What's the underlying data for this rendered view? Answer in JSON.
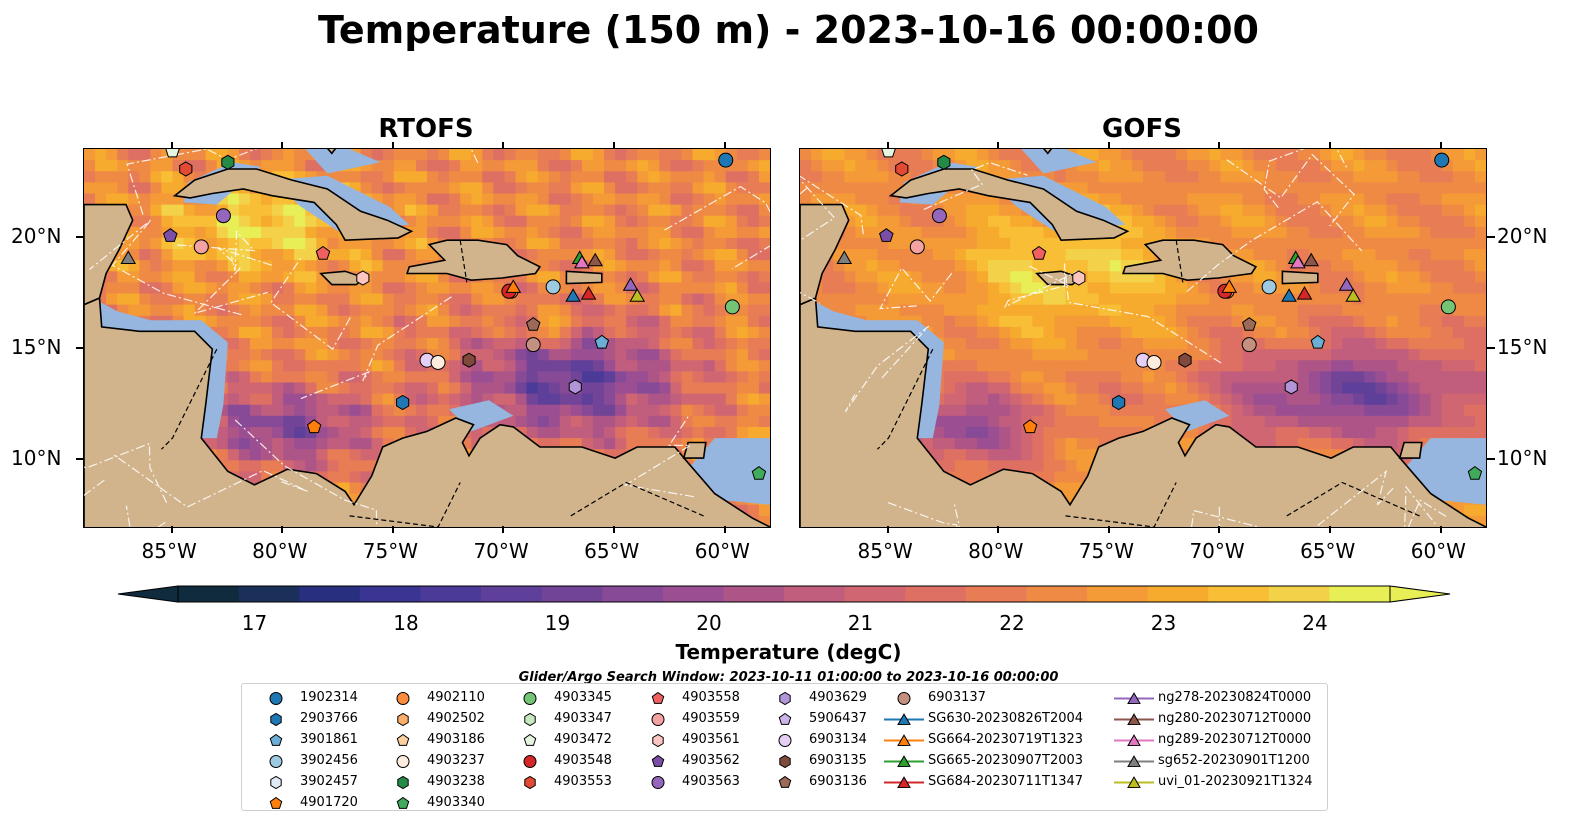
{
  "figure": {
    "title": "Temperature (150 m) - 2023-10-16 00:00:00",
    "search_window": "Glider/Argo Search Window: 2023-10-11 01:00:00 to 2023-10-16 00:00:00"
  },
  "chart_data": {
    "type": "heatmap",
    "variable": "Temperature (degC)",
    "depth": "150 m",
    "panels": [
      {
        "title": "RTOFS"
      },
      {
        "title": "GOFS"
      }
    ],
    "x_axis": {
      "ticks": [
        -85,
        -80,
        -75,
        -70,
        -65,
        -60
      ],
      "tick_labels": [
        "85°W",
        "80°W",
        "75°W",
        "70°W",
        "65°W",
        "60°W"
      ],
      "range": [
        -89,
        -58
      ]
    },
    "y_axis": {
      "ticks": [
        10,
        15,
        20
      ],
      "tick_labels": [
        "10°N",
        "15°N",
        "20°N"
      ],
      "range": [
        7,
        24
      ]
    },
    "colorbar": {
      "label": "Temperature (degC)",
      "ticks": [
        17,
        18,
        19,
        20,
        21,
        22,
        23,
        24
      ],
      "range": [
        16.5,
        24.5
      ],
      "extend": "both",
      "colors": [
        "#0f2b3d",
        "#1a2f5a",
        "#272f7e",
        "#3a3592",
        "#4b3a98",
        "#5e3f99",
        "#714498",
        "#864a97",
        "#9b4f92",
        "#ae5588",
        "#c15d7d",
        "#d06671",
        "#dd7063",
        "#e87c55",
        "#ef8a45",
        "#f49a37",
        "#f7ab2e",
        "#f8be36",
        "#f3d24a",
        "#e8ee55"
      ]
    },
    "grid": false
  },
  "legend": {
    "columns": [
      [
        {
          "label": "1902314",
          "marker": "circle",
          "color": "#1f77b4",
          "kind": "argo"
        },
        {
          "label": "2903766",
          "marker": "hexagon",
          "color": "#1f77b4",
          "kind": "argo"
        },
        {
          "label": "3901861",
          "marker": "pentagon",
          "color": "#6baed6",
          "kind": "argo"
        },
        {
          "label": "3902456",
          "marker": "circle",
          "color": "#9ecae1",
          "kind": "argo"
        },
        {
          "label": "3902457",
          "marker": "hexagon",
          "color": "#deebf7",
          "kind": "argo"
        },
        {
          "label": "4901720",
          "marker": "pentagon",
          "color": "#ff7f0e",
          "kind": "argo"
        }
      ],
      [
        {
          "label": "4902110",
          "marker": "circle",
          "color": "#fd8d3c",
          "kind": "argo"
        },
        {
          "label": "4902502",
          "marker": "hexagon",
          "color": "#fdae6b",
          "kind": "argo"
        },
        {
          "label": "4903186",
          "marker": "pentagon",
          "color": "#fdd0a2",
          "kind": "argo"
        },
        {
          "label": "4903237",
          "marker": "circle",
          "color": "#feedde",
          "kind": "argo"
        },
        {
          "label": "4903238",
          "marker": "hexagon",
          "color": "#238b45",
          "kind": "argo"
        },
        {
          "label": "4903340",
          "marker": "pentagon",
          "color": "#41ab5d",
          "kind": "argo"
        }
      ],
      [
        {
          "label": "4903345",
          "marker": "circle",
          "color": "#74c476",
          "kind": "argo"
        },
        {
          "label": "4903347",
          "marker": "hexagon",
          "color": "#c7e9c0",
          "kind": "argo"
        },
        {
          "label": "4903472",
          "marker": "pentagon",
          "color": "#e5f5e0",
          "kind": "argo"
        },
        {
          "label": "4903548",
          "marker": "circle",
          "color": "#d62728",
          "kind": "argo"
        },
        {
          "label": "4903553",
          "marker": "hexagon",
          "color": "#e34a33",
          "kind": "argo"
        }
      ],
      [
        {
          "label": "4903558",
          "marker": "pentagon",
          "color": "#f06060",
          "kind": "argo"
        },
        {
          "label": "4903559",
          "marker": "circle",
          "color": "#f4a3a3",
          "kind": "argo"
        },
        {
          "label": "4903561",
          "marker": "hexagon",
          "color": "#fcc5c0",
          "kind": "argo"
        },
        {
          "label": "4903562",
          "marker": "pentagon",
          "color": "#7b4fa8",
          "kind": "argo"
        },
        {
          "label": "4903563",
          "marker": "circle",
          "color": "#9467bd",
          "kind": "argo"
        }
      ],
      [
        {
          "label": "4903629",
          "marker": "hexagon",
          "color": "#b294d8",
          "kind": "argo"
        },
        {
          "label": "5906437",
          "marker": "pentagon",
          "color": "#cbb5e8",
          "kind": "argo"
        },
        {
          "label": "6903134",
          "marker": "circle",
          "color": "#e6cff5",
          "kind": "argo"
        },
        {
          "label": "6903135",
          "marker": "hexagon",
          "color": "#7f4a3b",
          "kind": "argo"
        },
        {
          "label": "6903136",
          "marker": "pentagon",
          "color": "#9b6a58",
          "kind": "argo"
        }
      ],
      [
        {
          "label": "6903137",
          "marker": "circle",
          "color": "#c4907f",
          "kind": "argo"
        },
        {
          "label": "SG630-20230826T2004",
          "marker": "triangle",
          "color": "#1f77b4",
          "kind": "glider"
        },
        {
          "label": "SG664-20230719T1323",
          "marker": "triangle",
          "color": "#ff7f0e",
          "kind": "glider"
        },
        {
          "label": "SG665-20230907T2003",
          "marker": "triangle",
          "color": "#2ca02c",
          "kind": "glider"
        },
        {
          "label": "SG684-20230711T1347",
          "marker": "triangle",
          "color": "#d62728",
          "kind": "glider"
        }
      ],
      [
        {
          "label": "ng278-20230824T0000",
          "marker": "triangle",
          "color": "#9467bd",
          "kind": "glider"
        },
        {
          "label": "ng280-20230712T0000",
          "marker": "triangle",
          "color": "#8c564b",
          "kind": "glider"
        },
        {
          "label": "ng289-20230712T0000",
          "marker": "triangle",
          "color": "#e377c2",
          "kind": "glider"
        },
        {
          "label": "sg652-20230901T1200",
          "marker": "triangle",
          "color": "#7f7f7f",
          "kind": "glider"
        },
        {
          "label": "uvi_01-20230921T1324",
          "marker": "triangle",
          "color": "#bcbd22",
          "kind": "glider"
        }
      ]
    ]
  },
  "platforms": [
    {
      "label": "1902314",
      "lon": -60.0,
      "lat": 23.5
    },
    {
      "label": "3902456",
      "lon": -67.8,
      "lat": 17.8
    },
    {
      "label": "3901861",
      "lon": -65.6,
      "lat": 15.3
    },
    {
      "label": "2903766",
      "lon": -74.6,
      "lat": 12.6
    },
    {
      "label": "4901720",
      "lon": -78.6,
      "lat": 11.5
    },
    {
      "label": "4902110",
      "lon": -69.7,
      "lat": 17.6
    },
    {
      "label": "4903238",
      "lon": -82.5,
      "lat": 23.4
    },
    {
      "label": "4903340",
      "lon": -58.5,
      "lat": 9.4
    },
    {
      "label": "4903345",
      "lon": -59.7,
      "lat": 16.9
    },
    {
      "label": "4903472",
      "lon": -85.0,
      "lat": 23.9
    },
    {
      "label": "4903548",
      "lon": -69.8,
      "lat": 17.6
    },
    {
      "label": "4903553",
      "lon": -84.4,
      "lat": 23.1
    },
    {
      "label": "4903558",
      "lon": -78.2,
      "lat": 19.3
    },
    {
      "label": "4903559",
      "lon": -83.7,
      "lat": 19.6
    },
    {
      "label": "4903561",
      "lon": -76.4,
      "lat": 18.2
    },
    {
      "label": "4903562",
      "lon": -85.1,
      "lat": 20.1
    },
    {
      "label": "4903563",
      "lon": -82.7,
      "lat": 21.0
    },
    {
      "label": "4903629",
      "lon": -66.8,
      "lat": 13.3
    },
    {
      "label": "6903134",
      "lon": -73.5,
      "lat": 14.5
    },
    {
      "label": "4903237",
      "lon": -73.0,
      "lat": 14.4
    },
    {
      "label": "6903135",
      "lon": -71.6,
      "lat": 14.5
    },
    {
      "label": "6903136",
      "lon": -68.7,
      "lat": 16.1
    },
    {
      "label": "6903137",
      "lon": -68.7,
      "lat": 15.2
    },
    {
      "label": "SG630-20230826T2004",
      "lon": -66.9,
      "lat": 17.4
    },
    {
      "label": "SG664-20230719T1323",
      "lon": -69.6,
      "lat": 17.8
    },
    {
      "label": "SG665-20230907T2003",
      "lon": -66.6,
      "lat": 19.1
    },
    {
      "label": "SG684-20230711T1347",
      "lon": -66.2,
      "lat": 17.5
    },
    {
      "label": "ng278-20230824T0000",
      "lon": -64.3,
      "lat": 17.9
    },
    {
      "label": "ng280-20230712T0000",
      "lon": -65.9,
      "lat": 19.0
    },
    {
      "label": "ng289-20230712T0000",
      "lon": -66.5,
      "lat": 18.9
    },
    {
      "label": "sg652-20230901T1200",
      "lon": -87.0,
      "lat": 19.1
    },
    {
      "label": "uvi_01-20230921T1324",
      "lon": -64.0,
      "lat": 17.4
    }
  ],
  "colors": {
    "land": "#d2b48c",
    "shelf_water": "#96b6e0",
    "deep_background": "#0b2234"
  }
}
